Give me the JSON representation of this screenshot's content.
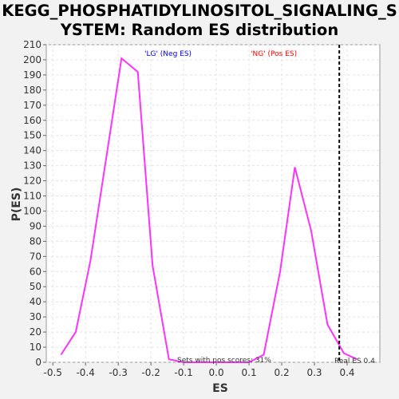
{
  "chart_data": {
    "type": "line",
    "title_line1": "KEGG_PHOSPHATIDYLINOSITOL_SIGNALING_S",
    "title_line2": "YSTEM: Random ES distribution",
    "xlabel": "ES",
    "ylabel": "P(ES)",
    "xlim": [
      -0.52,
      0.5
    ],
    "ylim": [
      0,
      210
    ],
    "xticks": [
      "-0.5",
      "-0.4",
      "-0.3",
      "-0.2",
      "-0.1",
      "0.0",
      "0.1",
      "0.2",
      "0.3",
      "0.4"
    ],
    "xtick_values": [
      -0.5,
      -0.4,
      -0.3,
      -0.2,
      -0.1,
      0.0,
      0.1,
      0.2,
      0.3,
      0.4
    ],
    "yticks": [
      0,
      10,
      20,
      30,
      40,
      50,
      60,
      70,
      80,
      90,
      100,
      110,
      120,
      130,
      140,
      150,
      160,
      170,
      180,
      190,
      200,
      210
    ],
    "grid": true,
    "series": [
      {
        "color": "#ff33ff",
        "x": [
          -0.475,
          -0.43,
          -0.385,
          -0.29,
          -0.24,
          -0.195,
          -0.145,
          -0.1,
          0.0,
          0.1,
          0.145,
          0.195,
          0.24,
          0.29,
          0.34,
          0.39,
          0.43
        ],
        "y": [
          5,
          20,
          67,
          201,
          192,
          64,
          2,
          0,
          0,
          0,
          5,
          60,
          129,
          87,
          25,
          6,
          2
        ]
      }
    ],
    "real_es": 0.376,
    "real_es_color": "#000000",
    "legend": [
      {
        "label": "'LG' (Neg ES)",
        "color": "#0000ff"
      },
      {
        "label": "'NG' (Pos ES)",
        "color": "#ff0000"
      }
    ],
    "annotations": {
      "pos_scores": "Sets with pos scores: 31%",
      "real_es_label": "Real ES 0.4"
    }
  }
}
